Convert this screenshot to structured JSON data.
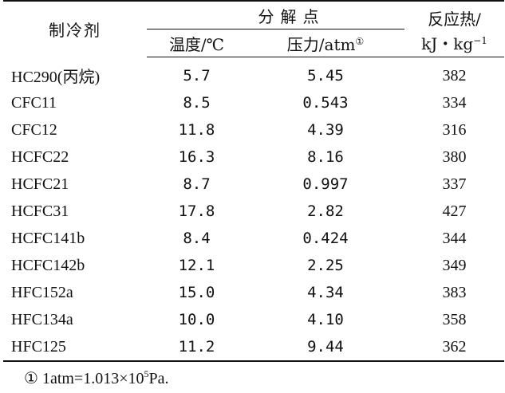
{
  "headers": {
    "agent": "制冷剂",
    "decomposition_point": "分解点",
    "temperature": "温度/℃",
    "pressure": "压力/atm",
    "pressure_mark": "①",
    "heat_line1": "反应热/",
    "heat_line2": "kJ・kg",
    "heat_exp": "−1"
  },
  "rows": [
    {
      "agent": "HC290(丙烷)",
      "temp": "5.7",
      "pressure": "5.45",
      "heat": "382"
    },
    {
      "agent": "CFC11",
      "temp": "8.5",
      "pressure": "0.543",
      "heat": "334"
    },
    {
      "agent": "CFC12",
      "temp": "11.8",
      "pressure": "4.39",
      "heat": "316"
    },
    {
      "agent": "HCFC22",
      "temp": "16.3",
      "pressure": "8.16",
      "heat": "380"
    },
    {
      "agent": "HCFC21",
      "temp": "8.7",
      "pressure": "0.997",
      "heat": "337"
    },
    {
      "agent": "HCFC31",
      "temp": "17.8",
      "pressure": "2.82",
      "heat": "427"
    },
    {
      "agent": "HCFC141b",
      "temp": "8.4",
      "pressure": "0.424",
      "heat": "344"
    },
    {
      "agent": "HCFC142b",
      "temp": "12.1",
      "pressure": "2.25",
      "heat": "349"
    },
    {
      "agent": "HFC152a",
      "temp": "15.0",
      "pressure": "4.34",
      "heat": "383"
    },
    {
      "agent": "HFC134a",
      "temp": "10.0",
      "pressure": "4.10",
      "heat": "358"
    },
    {
      "agent": "HFC125",
      "temp": "11.2",
      "pressure": "9.44",
      "heat": "362"
    }
  ],
  "footnote": {
    "mark": "①",
    "text": "1atm=1.013×10",
    "exp": "5",
    "unit": "Pa."
  }
}
